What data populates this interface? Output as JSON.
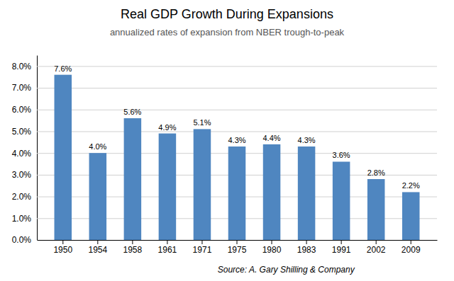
{
  "chart_data": {
    "type": "bar",
    "title": "Real GDP Growth During Expansions",
    "subtitle": "annualized rates of expansion from NBER trough-to-peak",
    "source": "Source: A. Gary Shilling & Company",
    "categories": [
      "1950",
      "1954",
      "1958",
      "1961",
      "1971",
      "1975",
      "1980",
      "1983",
      "1991",
      "2002",
      "2009"
    ],
    "values": [
      7.6,
      4.0,
      5.6,
      4.9,
      5.1,
      4.3,
      4.4,
      4.3,
      3.6,
      2.8,
      2.2
    ],
    "value_labels": [
      "7.6%",
      "4.0%",
      "5.6%",
      "4.9%",
      "5.1%",
      "4.3%",
      "4.4%",
      "4.3%",
      "3.6%",
      "2.8%",
      "2.2%"
    ],
    "data_labels": true,
    "color": "#4F86C0",
    "ylim": [
      0,
      8.5
    ],
    "yticks": [
      {
        "value": 0.0,
        "label": "0.0%"
      },
      {
        "value": 1.0,
        "label": "1.0%"
      },
      {
        "value": 2.0,
        "label": "2.0%"
      },
      {
        "value": 3.0,
        "label": "3.0%"
      },
      {
        "value": 4.0,
        "label": "4.0%"
      },
      {
        "value": 5.0,
        "label": "5.0%"
      },
      {
        "value": 6.0,
        "label": "6.0%"
      },
      {
        "value": 7.0,
        "label": "7.0%"
      },
      {
        "value": 8.0,
        "label": "8.0%"
      }
    ],
    "grid": true
  }
}
